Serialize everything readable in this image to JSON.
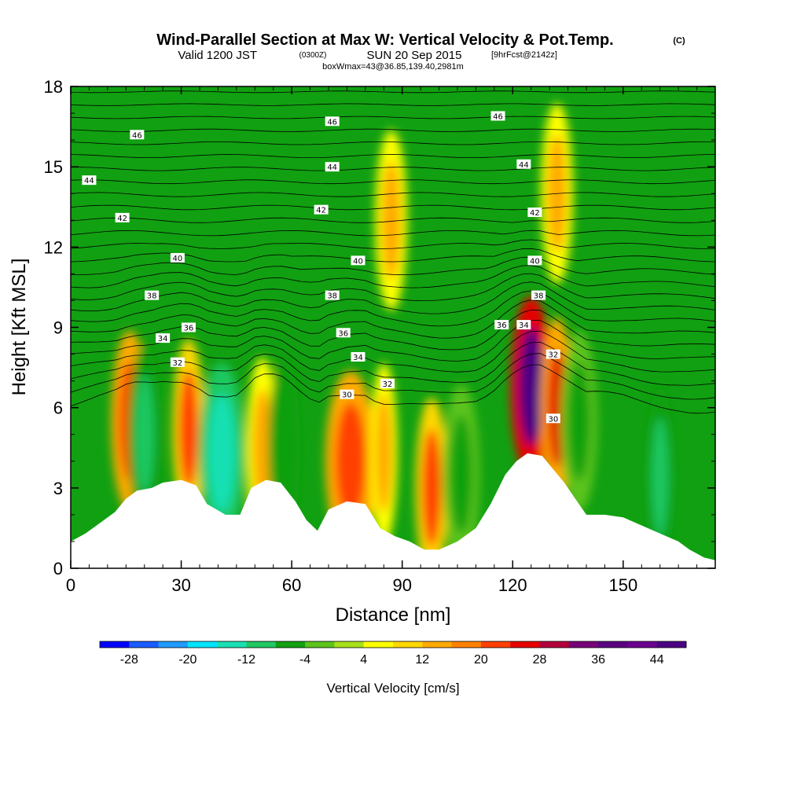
{
  "title": {
    "main": "Wind-Parallel Section at Max W: Vertical Velocity & Pot.Temp.",
    "copyright": "(C)",
    "valid_prefix": "Valid 1200 JST",
    "valid_utc": "(0300Z)",
    "valid_date": "SUN 20 Sep 2015",
    "forecast": "[9hrFcst@2142z]",
    "boxw": "boxWmax=43@36.85,139.40,2981m"
  },
  "chart_data": {
    "type": "heatmap",
    "xlabel": "Distance [nm]",
    "ylabel": "Height [Kft MSL]",
    "xlim": [
      0,
      175
    ],
    "ylim": [
      0,
      18
    ],
    "x_ticks": [
      0,
      30,
      60,
      90,
      120,
      150
    ],
    "y_ticks": [
      0,
      3,
      6,
      9,
      12,
      15,
      18
    ],
    "colorbar": {
      "label": "Vertical Velocity [cm/s]",
      "min": -32,
      "max": 48,
      "step": 4,
      "tick_labels": [
        -28,
        -20,
        -12,
        -4,
        4,
        12,
        20,
        28,
        36,
        44
      ],
      "colors": [
        "#0000ff",
        "#1a5cff",
        "#1f9bff",
        "#00e5ff",
        "#19e0b3",
        "#1fc862",
        "#11a011",
        "#5cc41a",
        "#a8e01a",
        "#ffff00",
        "#ffd700",
        "#ffaa00",
        "#ff8000",
        "#ff4000",
        "#e60000",
        "#b4003c",
        "#780078",
        "#5a0080",
        "#6a0090",
        "#4b0082"
      ]
    },
    "terrain": [
      [
        0,
        1.0
      ],
      [
        4,
        1.3
      ],
      [
        8,
        1.7
      ],
      [
        12,
        2.1
      ],
      [
        15,
        2.6
      ],
      [
        18,
        2.9
      ],
      [
        22,
        3.0
      ],
      [
        25,
        3.2
      ],
      [
        30,
        3.3
      ],
      [
        34,
        3.1
      ],
      [
        37,
        2.4
      ],
      [
        42,
        2.0
      ],
      [
        46,
        2.0
      ],
      [
        49,
        3.0
      ],
      [
        53,
        3.3
      ],
      [
        57,
        3.2
      ],
      [
        61,
        2.5
      ],
      [
        64,
        1.8
      ],
      [
        67,
        1.4
      ],
      [
        70,
        2.2
      ],
      [
        75,
        2.5
      ],
      [
        80,
        2.4
      ],
      [
        84,
        1.5
      ],
      [
        88,
        1.2
      ],
      [
        92,
        1.0
      ],
      [
        96,
        0.7
      ],
      [
        100,
        0.7
      ],
      [
        105,
        1.0
      ],
      [
        110,
        1.5
      ],
      [
        114,
        2.4
      ],
      [
        118,
        3.5
      ],
      [
        121,
        4.0
      ],
      [
        124,
        4.3
      ],
      [
        128,
        4.2
      ],
      [
        131,
        3.7
      ],
      [
        134,
        3.2
      ],
      [
        137,
        2.6
      ],
      [
        140,
        2.0
      ],
      [
        145,
        2.0
      ],
      [
        150,
        1.9
      ],
      [
        155,
        1.6
      ],
      [
        160,
        1.3
      ],
      [
        165,
        1.0
      ],
      [
        168,
        0.7
      ],
      [
        172,
        0.4
      ],
      [
        175,
        0.3
      ]
    ],
    "velocity_cells": [
      {
        "x": 16,
        "z": 5.5,
        "w": 8,
        "v": 22
      },
      {
        "x": 20,
        "z": 5.0,
        "w": 7,
        "v": -10
      },
      {
        "x": 32,
        "z": 5.2,
        "w": 7,
        "v": 20
      },
      {
        "x": 41,
        "z": 4.3,
        "w": 10,
        "v": -16
      },
      {
        "x": 52,
        "z": 4.5,
        "w": 7,
        "v": 14
      },
      {
        "x": 58,
        "z": 4.5,
        "w": 7,
        "v": -8
      },
      {
        "x": 76,
        "z": 4.0,
        "w": 11,
        "v": 22
      },
      {
        "x": 85,
        "z": 4.3,
        "w": 6,
        "v": 14
      },
      {
        "x": 98,
        "z": 3.0,
        "w": 7,
        "v": 20
      },
      {
        "x": 106,
        "z": 3.5,
        "w": 8,
        "v": -6
      },
      {
        "x": 125,
        "z": 6.8,
        "w": 9,
        "v": 46
      },
      {
        "x": 132,
        "z": 6.0,
        "w": 7,
        "v": 24
      },
      {
        "x": 138,
        "z": 5.5,
        "w": 8,
        "v": -6
      },
      {
        "x": 160,
        "z": 3.4,
        "w": 6,
        "v": -12
      },
      {
        "x": 87,
        "z": 13.0,
        "w": 7,
        "v": 12
      },
      {
        "x": 132,
        "z": 14.0,
        "w": 7,
        "v": 14
      }
    ],
    "contour_labels": [
      {
        "text": "46",
        "x": 18,
        "z": 16.2
      },
      {
        "text": "44",
        "x": 5,
        "z": 14.5
      },
      {
        "text": "42",
        "x": 14,
        "z": 13.1
      },
      {
        "text": "40",
        "x": 29,
        "z": 11.6
      },
      {
        "text": "38",
        "x": 22,
        "z": 10.2
      },
      {
        "text": "36",
        "x": 32,
        "z": 9.0
      },
      {
        "text": "34",
        "x": 25,
        "z": 8.6
      },
      {
        "text": "32",
        "x": 29,
        "z": 7.7
      },
      {
        "text": "46",
        "x": 71,
        "z": 16.7
      },
      {
        "text": "44",
        "x": 71,
        "z": 15.0
      },
      {
        "text": "42",
        "x": 68,
        "z": 13.4
      },
      {
        "text": "40",
        "x": 78,
        "z": 11.5
      },
      {
        "text": "38",
        "x": 71,
        "z": 10.2
      },
      {
        "text": "36",
        "x": 74,
        "z": 8.8
      },
      {
        "text": "34",
        "x": 78,
        "z": 7.9
      },
      {
        "text": "32",
        "x": 86,
        "z": 6.9
      },
      {
        "text": "30",
        "x": 75,
        "z": 6.5
      },
      {
        "text": "46",
        "x": 116,
        "z": 16.9
      },
      {
        "text": "44",
        "x": 123,
        "z": 15.1
      },
      {
        "text": "42",
        "x": 126,
        "z": 13.3
      },
      {
        "text": "40",
        "x": 126,
        "z": 11.5
      },
      {
        "text": "38",
        "x": 127,
        "z": 10.2
      },
      {
        "text": "36",
        "x": 117,
        "z": 9.1
      },
      {
        "text": "34",
        "x": 123,
        "z": 9.1
      },
      {
        "text": "32",
        "x": 131,
        "z": 8.0
      },
      {
        "text": "30",
        "x": 131,
        "z": 5.6
      }
    ]
  }
}
